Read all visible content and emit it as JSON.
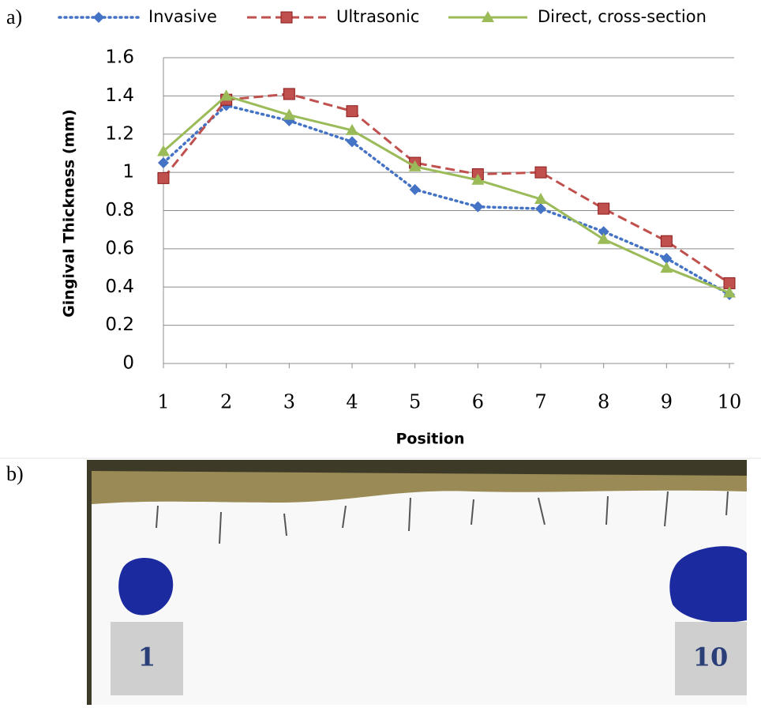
{
  "panels": {
    "a": "a)",
    "b": "b)"
  },
  "chart_data": {
    "type": "line",
    "x_label": "Position",
    "y_label": "Gingival Thickness (mm)",
    "x": [
      1,
      2,
      3,
      4,
      5,
      6,
      7,
      8,
      9,
      10
    ],
    "xlim": [
      1,
      10
    ],
    "xticks": [
      1,
      2,
      3,
      4,
      5,
      6,
      7,
      8,
      9,
      10
    ],
    "ylim": [
      0,
      1.6
    ],
    "yticks": [
      0,
      0.2,
      0.4,
      0.6,
      0.8,
      1,
      1.2,
      1.4,
      1.6
    ],
    "grid": true,
    "legend": "top",
    "series": [
      {
        "name": "Invasive",
        "color": "#4472c4",
        "values": [
          1.05,
          1.35,
          1.27,
          1.16,
          0.91,
          0.82,
          0.81,
          0.69,
          0.55,
          0.36
        ]
      },
      {
        "name": "Ultrasonic",
        "color": "#c0504d",
        "values": [
          0.97,
          1.38,
          1.41,
          1.32,
          1.05,
          0.99,
          1.0,
          0.81,
          0.64,
          0.42
        ]
      },
      {
        "name": "Direct, cross-section",
        "color": "#9bbb59",
        "values": [
          1.11,
          1.4,
          1.3,
          1.22,
          1.03,
          0.96,
          0.86,
          0.65,
          0.5,
          0.37
        ]
      }
    ]
  },
  "photo": {
    "labels": [
      "1",
      "10"
    ]
  }
}
